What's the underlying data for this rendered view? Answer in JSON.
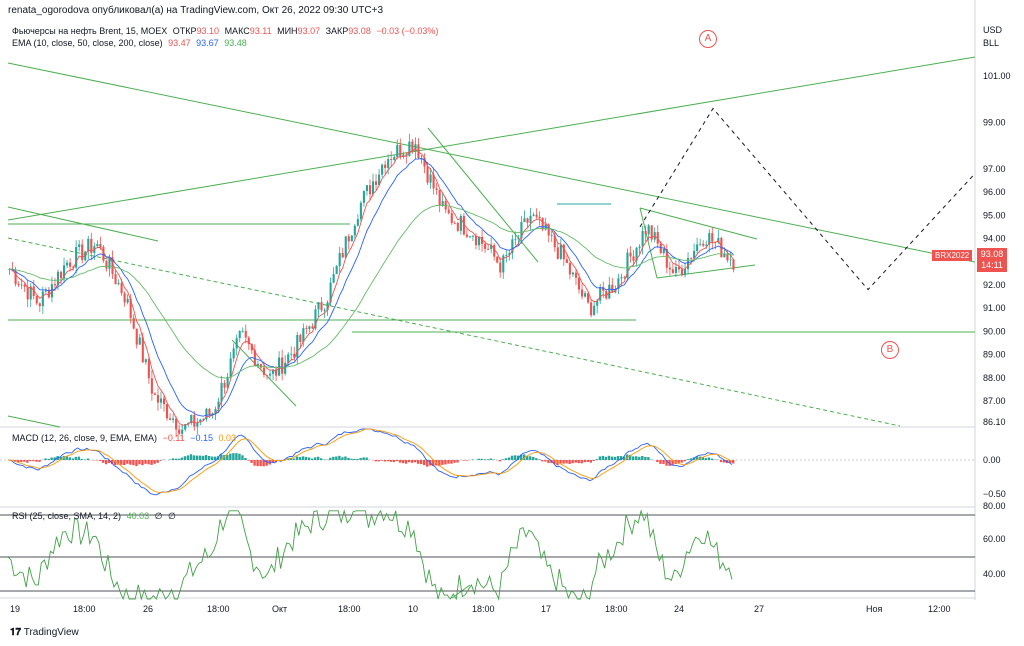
{
  "header": {
    "published_by": "renata_ogorodova опубликовал(а) на TradingView.com, Окт 26, 2022 09:30 UTC+3"
  },
  "legend_main": {
    "title": "Фьючерсы на нефть Brent, 15, MOEX",
    "open_label": "ОТКР",
    "open_value": "93.10",
    "high_label": "МАКС",
    "high_value": "93.11",
    "low_label": "МИН",
    "low_value": "93.07",
    "close_label": "ЗАКР",
    "close_value": "93.08",
    "change": "−0.03 (−0.03%)"
  },
  "legend_ema": {
    "label": "EMA (10, close, 50, close, 200, close)",
    "v1": "93.47",
    "v2": "93.67",
    "v3": "93.48"
  },
  "legend_macd": {
    "label": "MACD (12, 26, close, 9, EMA, EMA)",
    "v1": "−0.11",
    "v2": "−0.15",
    "v3": "0.03"
  },
  "legend_rsi": {
    "label": "RSI (25, close, SMA, 14, 2)",
    "v1": "40.03",
    "v2": "∅",
    "v3": "∅"
  },
  "price_axis": {
    "currency": "USD",
    "unit": "BLL",
    "ticks": [
      "101.00",
      "99.00",
      "97.00",
      "96.00",
      "95.00",
      "94.00",
      "93.00",
      "92.00",
      "91.00",
      "90.00",
      "89.00",
      "88.00",
      "87.00",
      "86.10"
    ],
    "last_price": "93.08",
    "countdown": "14:11",
    "symbol": "BRX2022"
  },
  "macd_axis": {
    "ticks": [
      "0.00",
      "−0.50"
    ]
  },
  "rsi_axis": {
    "ticks": [
      "80.00",
      "60.00",
      "40.00"
    ]
  },
  "time_axis": {
    "ticks": [
      "19",
      "18:00",
      "26",
      "18:00",
      "Окт",
      "18:00",
      "10",
      "18:00",
      "17",
      "18:00",
      "24",
      "27",
      "Ноя",
      "12:00"
    ]
  },
  "annotations": {
    "a": "A",
    "b": "B"
  },
  "footer": {
    "brand": "TradingView"
  },
  "colors": {
    "up": "#26a69a",
    "down": "#ef5350",
    "trend": "#4caf50",
    "ema_fast": "#ef5350",
    "ema_mid": "#2962ff",
    "ema_slow": "#4caf50",
    "macd": "#2962ff",
    "signal": "#ff9800",
    "rsi": "#43a047"
  },
  "chart_data": {
    "type": "candlestick",
    "title": "Фьючерсы на нефть Brent, 15, MOEX",
    "ylim": [
      86.1,
      102.0
    ],
    "price_path": [
      [
        "19",
        92.7
      ],
      [
        "19",
        91.2
      ],
      [
        "19",
        93.0
      ],
      [
        "18:00",
        93.8
      ],
      [
        "18:00",
        91.5
      ],
      [
        "26",
        87.2
      ],
      [
        "26",
        85.8
      ],
      [
        "26",
        86.5
      ],
      [
        "18:00",
        89.8
      ],
      [
        "18:00",
        88.0
      ],
      [
        "Окт",
        89.5
      ],
      [
        "Окт",
        91.6
      ],
      [
        "18:00",
        95.2
      ],
      [
        "18:00",
        97.5
      ],
      [
        "10",
        98.2
      ],
      [
        "10",
        95.1
      ],
      [
        "18:00",
        94.3
      ],
      [
        "18:00",
        92.8
      ],
      [
        "17",
        95.0
      ],
      [
        "17",
        93.4
      ],
      [
        "18:00",
        91.0
      ],
      [
        "18:00",
        92.2
      ],
      [
        "24",
        94.5
      ],
      [
        "24",
        92.4
      ],
      [
        "24",
        94.2
      ],
      [
        "27",
        93.08
      ]
    ],
    "projection": [
      [
        "24",
        94.5
      ],
      [
        "27",
        99.6
      ],
      [
        "Ноя",
        91.8
      ],
      [
        "12:00",
        96.8
      ]
    ]
  }
}
